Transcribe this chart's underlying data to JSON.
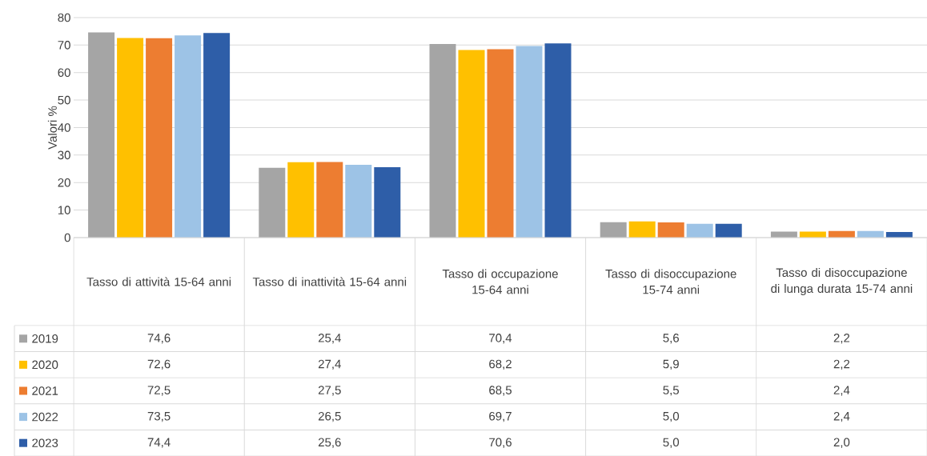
{
  "chart_data": {
    "type": "bar",
    "ylabel": "Valori %",
    "categories": [
      "Tasso di attività 15-64 anni",
      "Tasso di inattività 15-64 anni",
      "Tasso di occupazione 15-64 anni",
      "Tasso di disoccupazione 15-74 anni",
      "Tasso di disoccupazione di lunga durata 15-74 anni"
    ],
    "series": [
      {
        "name": "2019",
        "color": "#a5a5a5",
        "values": [
          74.6,
          25.4,
          70.4,
          5.6,
          2.2
        ],
        "value_labels": [
          "74,6",
          "25,4",
          "70,4",
          "5,6",
          "2,2"
        ]
      },
      {
        "name": "2020",
        "color": "#ffc000",
        "values": [
          72.6,
          27.4,
          68.2,
          5.9,
          2.2
        ],
        "value_labels": [
          "72,6",
          "27,4",
          "68,2",
          "5,9",
          "2,2"
        ]
      },
      {
        "name": "2021",
        "color": "#ed7d31",
        "values": [
          72.5,
          27.5,
          68.5,
          5.5,
          2.4
        ],
        "value_labels": [
          "72,5",
          "27,5",
          "68,5",
          "5,5",
          "2,4"
        ]
      },
      {
        "name": "2022",
        "color": "#9dc3e6",
        "values": [
          73.5,
          26.5,
          69.7,
          5.0,
          2.4
        ],
        "value_labels": [
          "73,5",
          "26,5",
          "69,7",
          "5,0",
          "2,4"
        ]
      },
      {
        "name": "2023",
        "color": "#2e5ea8",
        "values": [
          74.4,
          25.6,
          70.6,
          5.0,
          2.0
        ],
        "value_labels": [
          "74,4",
          "25,6",
          "70,6",
          "5,0",
          "2,0"
        ]
      }
    ],
    "ylim": [
      0,
      80
    ],
    "yticks": [
      0,
      10,
      20,
      30,
      40,
      50,
      60,
      70,
      80
    ],
    "grid": "y",
    "legend": "bottom left"
  }
}
